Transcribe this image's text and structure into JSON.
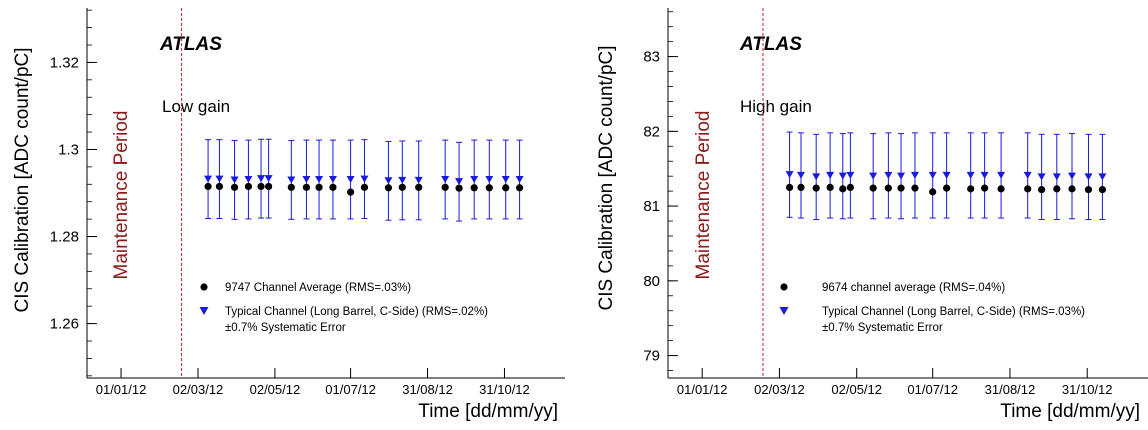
{
  "chart_data": [
    {
      "type": "scatter",
      "title": "ATLAS",
      "annotation": "Low gain",
      "period_label": "Maintenance Period",
      "xlabel": "Time [dd/mm/yy]",
      "ylabel": "CIS Calibration [ADC count/pC]",
      "x_tick_labels": [
        "01/01/12",
        "02/03/12",
        "02/05/12",
        "01/07/12",
        "31/08/12",
        "31/10/12"
      ],
      "x_ticks": [
        "2012-01-01",
        "2012-03-02",
        "2012-05-02",
        "2012-07-01",
        "2012-08-31",
        "2012-10-31"
      ],
      "xlim": [
        "2011-12-05",
        "2012-12-18"
      ],
      "ylim": [
        1.2475,
        1.3325
      ],
      "y_ticks": [
        1.26,
        1.28,
        1.3,
        1.32
      ],
      "y_tick_labels": [
        "1.26",
        "1.28",
        "1.3",
        "1.32"
      ],
      "maintenance_end": "2012-02-18",
      "legend_position": "bottom-right",
      "legend_extra": "±0.7% Systematic Error",
      "grid": false,
      "series": [
        {
          "name": "9747 Channel Average (RMS=.03%)",
          "marker": "circle",
          "color": "#000000",
          "x": [
            "2012-03-10",
            "2012-03-19",
            "2012-03-31",
            "2012-04-11",
            "2012-04-21",
            "2012-04-27",
            "2012-05-15",
            "2012-05-27",
            "2012-06-06",
            "2012-06-17",
            "2012-07-01",
            "2012-07-12",
            "2012-07-31",
            "2012-08-11",
            "2012-08-24",
            "2012-09-14",
            "2012-09-25",
            "2012-10-07",
            "2012-10-19",
            "2012-11-01",
            "2012-11-12"
          ],
          "y": [
            1.2915,
            1.2915,
            1.2913,
            1.2915,
            1.2915,
            1.2915,
            1.2913,
            1.2913,
            1.2913,
            1.2913,
            1.2902,
            1.2913,
            1.2912,
            1.2913,
            1.2913,
            1.2913,
            1.2911,
            1.2912,
            1.2912,
            1.2912,
            1.2912
          ]
        },
        {
          "name": "Typical Channel (Long Barrel, C-Side) (RMS=.02%)",
          "marker": "triangle-down",
          "color": "#1a1adb",
          "error_relative": 0.007,
          "x": [
            "2012-03-10",
            "2012-03-19",
            "2012-03-31",
            "2012-04-11",
            "2012-04-21",
            "2012-04-27",
            "2012-05-15",
            "2012-05-27",
            "2012-06-06",
            "2012-06-17",
            "2012-07-01",
            "2012-07-12",
            "2012-07-31",
            "2012-08-11",
            "2012-08-24",
            "2012-09-14",
            "2012-09-25",
            "2012-10-07",
            "2012-10-19",
            "2012-11-01",
            "2012-11-12"
          ],
          "y": [
            1.2932,
            1.2932,
            1.293,
            1.2931,
            1.2933,
            1.2933,
            1.293,
            1.2931,
            1.2931,
            1.2931,
            1.2931,
            1.2932,
            1.2928,
            1.2929,
            1.2929,
            1.2931,
            1.2926,
            1.2931,
            1.2931,
            1.2931,
            1.2931
          ]
        }
      ]
    },
    {
      "type": "scatter",
      "title": "ATLAS",
      "annotation": "High gain",
      "period_label": "Maintenance Period",
      "xlabel": "Time [dd/mm/yy]",
      "ylabel": "CIS Calibration [ADC count/pC]",
      "x_tick_labels": [
        "01/01/12",
        "02/03/12",
        "02/05/12",
        "01/07/12",
        "31/08/12",
        "31/10/12"
      ],
      "x_ticks": [
        "2012-01-01",
        "2012-03-02",
        "2012-05-02",
        "2012-07-01",
        "2012-08-31",
        "2012-10-31"
      ],
      "xlim": [
        "2011-12-05",
        "2012-12-18"
      ],
      "ylim": [
        78.7,
        83.65
      ],
      "y_ticks": [
        79,
        80,
        81,
        82,
        83
      ],
      "y_tick_labels": [
        "79",
        "80",
        "81",
        "82",
        "83"
      ],
      "maintenance_end": "2012-02-18",
      "legend_position": "bottom-right",
      "legend_extra": "±0.7% Systematic Error",
      "grid": false,
      "series": [
        {
          "name": "9674 channel average (RMS=.04%)",
          "marker": "circle",
          "color": "#000000",
          "x": [
            "2012-03-10",
            "2012-03-19",
            "2012-03-31",
            "2012-04-11",
            "2012-04-21",
            "2012-04-27",
            "2012-05-15",
            "2012-05-27",
            "2012-06-06",
            "2012-06-17",
            "2012-07-01",
            "2012-07-12",
            "2012-07-31",
            "2012-08-11",
            "2012-08-24",
            "2012-09-14",
            "2012-09-25",
            "2012-10-07",
            "2012-10-19",
            "2012-11-01",
            "2012-11-12"
          ],
          "y": [
            81.25,
            81.25,
            81.24,
            81.25,
            81.23,
            81.25,
            81.24,
            81.24,
            81.24,
            81.24,
            81.19,
            81.24,
            81.23,
            81.24,
            81.23,
            81.23,
            81.22,
            81.23,
            81.23,
            81.22,
            81.22
          ]
        },
        {
          "name": "Typical Channel (Long Barrel, C-Side) (RMS=.03%)",
          "marker": "triangle-down",
          "color": "#1a1adb",
          "error_relative": 0.007,
          "x": [
            "2012-03-10",
            "2012-03-19",
            "2012-03-31",
            "2012-04-11",
            "2012-04-21",
            "2012-04-27",
            "2012-05-15",
            "2012-05-27",
            "2012-06-06",
            "2012-06-17",
            "2012-07-01",
            "2012-07-12",
            "2012-07-31",
            "2012-08-11",
            "2012-08-24",
            "2012-09-14",
            "2012-09-25",
            "2012-10-07",
            "2012-10-19",
            "2012-11-01",
            "2012-11-12"
          ],
          "y": [
            81.42,
            81.41,
            81.39,
            81.41,
            81.4,
            81.41,
            81.4,
            81.41,
            81.4,
            81.41,
            81.41,
            81.41,
            81.41,
            81.41,
            81.41,
            81.41,
            81.39,
            81.39,
            81.4,
            81.39,
            81.39
          ]
        }
      ]
    }
  ]
}
